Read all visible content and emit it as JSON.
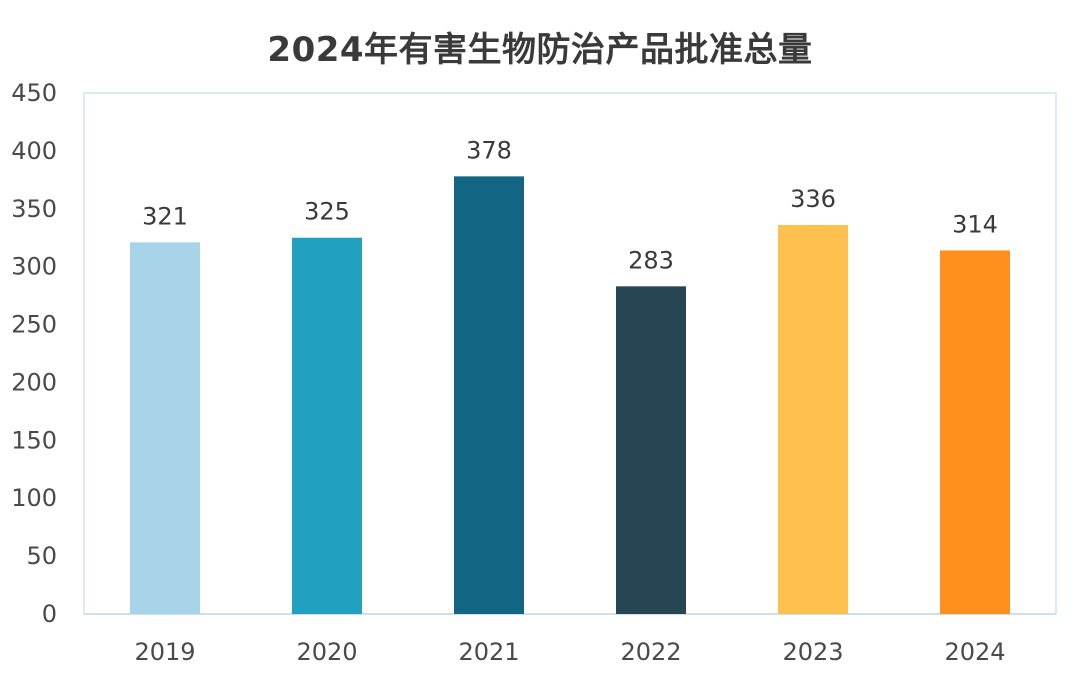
{
  "chart_data": {
    "type": "bar",
    "title": "2024年有害生物防治产品批准总量",
    "categories": [
      "2019",
      "2020",
      "2021",
      "2022",
      "2023",
      "2024"
    ],
    "values": [
      321,
      325,
      378,
      283,
      336,
      314
    ],
    "colors": [
      "#a8d4ea",
      "#21a0c0",
      "#136683",
      "#264653",
      "#ffc04d",
      "#ff9020"
    ],
    "ylim": [
      0,
      450
    ],
    "yticks": [
      0,
      50,
      100,
      150,
      200,
      250,
      300,
      350,
      400,
      450
    ],
    "xlabel": "",
    "ylabel": "",
    "grid": false,
    "data_labels": true
  },
  "colors": {
    "title": "#3a3a3a",
    "axis_text": "#4a4a4a",
    "frame": "#cfe3ef"
  }
}
